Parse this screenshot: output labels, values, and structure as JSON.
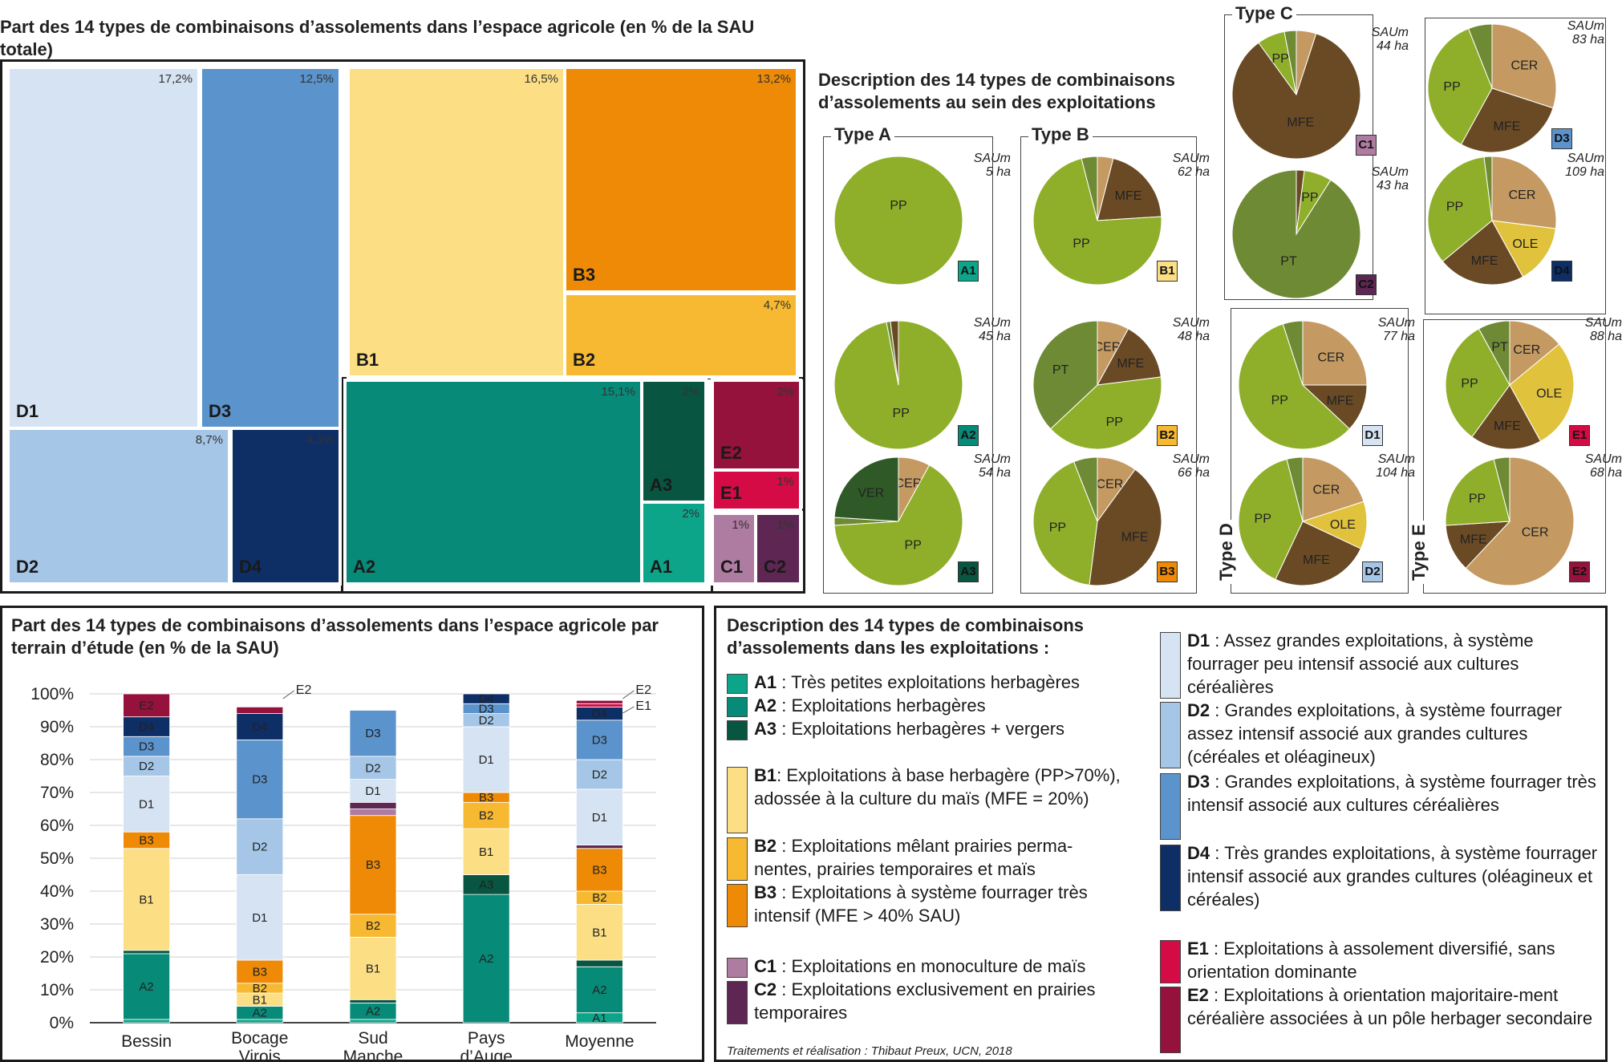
{
  "treemap": {
    "title": "Part des 14 types de combinaisons d’assolements dans l’espace agricole (en % de la SAU totale)",
    "cells": [
      {
        "code": "D1",
        "pct": "17,2%",
        "color": "#d6e3f3"
      },
      {
        "code": "D3",
        "pct": "12,5%",
        "color": "#5b93cc"
      },
      {
        "code": "D2",
        "pct": "8,7%",
        "color": "#a5c6e6"
      },
      {
        "code": "D4",
        "pct": "4,3%",
        "color": "#0e2e66"
      },
      {
        "code": "B1",
        "pct": "16,5%",
        "color": "#fcdf85"
      },
      {
        "code": "B3",
        "pct": "13,2%",
        "color": "#ee8a06"
      },
      {
        "code": "B2",
        "pct": "4,7%",
        "color": "#f6b931"
      },
      {
        "code": "A2",
        "pct": "15,1%",
        "color": "#078a78"
      },
      {
        "code": "A3",
        "pct": "2%",
        "color": "#085542"
      },
      {
        "code": "A1",
        "pct": "2%",
        "color": "#0ca58a"
      },
      {
        "code": "E2",
        "pct": "2%",
        "color": "#95123c"
      },
      {
        "code": "E1",
        "pct": "1%",
        "color": "#d50b45"
      },
      {
        "code": "C1",
        "pct": "1%",
        "color": "#ae7ba1"
      },
      {
        "code": "C2",
        "pct": "1%",
        "color": "#5d2653"
      }
    ]
  },
  "pies_panel": {
    "title": "Description des 14 types de combinaisons d’assolements au sein des exploitations",
    "groups": [
      {
        "label": "Type A"
      },
      {
        "label": "Type B"
      },
      {
        "label": "Type C"
      },
      {
        "label": "Type D"
      },
      {
        "label": "Type E"
      }
    ],
    "slice_colors": {
      "PP": "#8faf2a",
      "PT": "#6f8a35",
      "MFE": "#6a4a25",
      "CER": "#c49a62",
      "OLE": "#e1c23d",
      "VER": "#2f5a27"
    },
    "pies": [
      {
        "code": "A1",
        "saum": [
          "SAUm",
          "5 ha"
        ],
        "slices": [
          {
            "l": "PP",
            "v": 100
          }
        ]
      },
      {
        "code": "A2",
        "saum": [
          "SAUm",
          "45 ha"
        ],
        "slices": [
          {
            "l": "PP",
            "v": 97,
            "show": true
          },
          {
            "l": "PT",
            "v": 1
          },
          {
            "l": "MFE",
            "v": 2
          }
        ]
      },
      {
        "code": "A3",
        "saum": [
          "SAUm",
          "54 ha"
        ],
        "slices": [
          {
            "l": "CER",
            "v": 8
          },
          {
            "l": "PP",
            "v": 66
          },
          {
            "l": "PT",
            "v": 2
          },
          {
            "l": "VER",
            "v": 24
          }
        ]
      },
      {
        "code": "B1",
        "saum": [
          "SAUm",
          "62 ha"
        ],
        "slices": [
          {
            "l": "CER",
            "v": 4
          },
          {
            "l": "MFE",
            "v": 20
          },
          {
            "l": "PP",
            "v": 72
          },
          {
            "l": "PT",
            "v": 4
          }
        ]
      },
      {
        "code": "B2",
        "saum": [
          "SAUm",
          "48 ha"
        ],
        "slices": [
          {
            "l": "CER",
            "v": 8
          },
          {
            "l": "MFE",
            "v": 15
          },
          {
            "l": "PP",
            "v": 40
          },
          {
            "l": "PT",
            "v": 37
          }
        ]
      },
      {
        "code": "B3",
        "saum": [
          "SAUm",
          "66 ha"
        ],
        "slices": [
          {
            "l": "CER",
            "v": 10
          },
          {
            "l": "MFE",
            "v": 42
          },
          {
            "l": "PP",
            "v": 42
          },
          {
            "l": "PT",
            "v": 6
          }
        ]
      },
      {
        "code": "C1",
        "saum": [
          "SAUm",
          "44 ha"
        ],
        "slices": [
          {
            "l": "CER",
            "v": 5
          },
          {
            "l": "MFE",
            "v": 85
          },
          {
            "l": "PP",
            "v": 7
          },
          {
            "l": "PT",
            "v": 3
          }
        ]
      },
      {
        "code": "C2",
        "saum": [
          "SAUm",
          "43 ha"
        ],
        "slices": [
          {
            "l": "MFE",
            "v": 2
          },
          {
            "l": "PP",
            "v": 7
          },
          {
            "l": "PT",
            "v": 91
          }
        ]
      },
      {
        "code": "D3",
        "saum": [
          "SAUm",
          "83 ha"
        ],
        "slices": [
          {
            "l": "CER",
            "v": 30
          },
          {
            "l": "MFE",
            "v": 28
          },
          {
            "l": "PP",
            "v": 36
          },
          {
            "l": "PT",
            "v": 6
          }
        ]
      },
      {
        "code": "D4",
        "saum": [
          "SAUm",
          "109 ha"
        ],
        "slices": [
          {
            "l": "CER",
            "v": 27
          },
          {
            "l": "OLE",
            "v": 15
          },
          {
            "l": "MFE",
            "v": 22
          },
          {
            "l": "PP",
            "v": 34
          },
          {
            "l": "PT",
            "v": 2
          }
        ]
      },
      {
        "code": "D1",
        "saum": [
          "SAUm",
          "77 ha"
        ],
        "slices": [
          {
            "l": "CER",
            "v": 25
          },
          {
            "l": "MFE",
            "v": 12
          },
          {
            "l": "PP",
            "v": 58
          },
          {
            "l": "PT",
            "v": 5
          }
        ]
      },
      {
        "code": "D2",
        "saum": [
          "SAUm",
          "104 ha"
        ],
        "slices": [
          {
            "l": "CER",
            "v": 20
          },
          {
            "l": "OLE",
            "v": 12
          },
          {
            "l": "MFE",
            "v": 25
          },
          {
            "l": "PP",
            "v": 39
          },
          {
            "l": "PT",
            "v": 4
          }
        ]
      },
      {
        "code": "E1",
        "saum": [
          "SAUm",
          "88 ha"
        ],
        "slices": [
          {
            "l": "CER",
            "v": 14
          },
          {
            "l": "OLE",
            "v": 28
          },
          {
            "l": "MFE",
            "v": 18
          },
          {
            "l": "PP",
            "v": 32
          },
          {
            "l": "PT",
            "v": 8
          }
        ]
      },
      {
        "code": "E2",
        "saum": [
          "SAUm",
          "68 ha"
        ],
        "slices": [
          {
            "l": "CER",
            "v": 62
          },
          {
            "l": "MFE",
            "v": 12
          },
          {
            "l": "PP",
            "v": 22
          },
          {
            "l": "PT",
            "v": 4
          }
        ]
      }
    ]
  },
  "chart_data": {
    "type": "bar",
    "stacked": true,
    "title": "Part des 14 types de combinaisons d’assolements dans l’espace agricole par terrain d’étude (en % de la SAU)",
    "categories": [
      "Bessin",
      "Bocage Virois",
      "Sud Manche",
      "Pays d’Auge",
      "Moyenne"
    ],
    "category_lines": [
      [
        "Bessin"
      ],
      [
        "Bocage",
        "Virois"
      ],
      [
        "Sud",
        "Manche"
      ],
      [
        "Pays",
        "d’Auge"
      ],
      [
        "Moyenne"
      ]
    ],
    "ylim": [
      0,
      100
    ],
    "yticks": [
      "0%",
      "10%",
      "20%",
      "30%",
      "40%",
      "50%",
      "60%",
      "70%",
      "80%",
      "90%",
      "100%"
    ],
    "grid": true,
    "outside_labels": [
      {
        "category": "Bocage Virois",
        "text": "E2"
      },
      {
        "category": "Moyenne",
        "text": "E2"
      },
      {
        "category": "Moyenne",
        "text": "E1"
      }
    ],
    "series": [
      {
        "name": "A1",
        "color": "#0ca58a",
        "values": [
          1,
          1,
          1,
          0,
          3
        ]
      },
      {
        "name": "A2",
        "color": "#078a78",
        "values": [
          20,
          4,
          5,
          39,
          14
        ]
      },
      {
        "name": "A3",
        "color": "#085542",
        "values": [
          1,
          0,
          1,
          6,
          2
        ]
      },
      {
        "name": "B1",
        "color": "#fcdf85",
        "values": [
          31,
          4,
          19,
          14,
          17
        ]
      },
      {
        "name": "B2",
        "color": "#f6b931",
        "values": [
          0,
          3,
          7,
          8,
          4
        ]
      },
      {
        "name": "B3",
        "color": "#ee8a06",
        "values": [
          5,
          7,
          30,
          3,
          13
        ]
      },
      {
        "name": "C1",
        "color": "#ae7ba1",
        "values": [
          0,
          0,
          2,
          0,
          0
        ]
      },
      {
        "name": "C2",
        "color": "#5d2653",
        "values": [
          0,
          0,
          2,
          0,
          1
        ]
      },
      {
        "name": "D1",
        "color": "#d6e3f3",
        "values": [
          17,
          26,
          7,
          20,
          17
        ]
      },
      {
        "name": "D2",
        "color": "#a5c6e6",
        "values": [
          6,
          17,
          7,
          4,
          9
        ]
      },
      {
        "name": "D3",
        "color": "#5b93cc",
        "values": [
          6,
          24,
          14,
          3,
          12
        ]
      },
      {
        "name": "D4",
        "color": "#0e2e66",
        "values": [
          6,
          8,
          0,
          3,
          4
        ]
      },
      {
        "name": "E1",
        "color": "#d50b45",
        "values": [
          0,
          0,
          0,
          0,
          1
        ]
      },
      {
        "name": "E2",
        "color": "#95123c",
        "values": [
          7,
          2,
          0,
          0,
          1
        ]
      }
    ]
  },
  "legend": {
    "title": "Description des 14 types de combinaisons d’assolements dans les exploitations :",
    "items": [
      {
        "code": "A1",
        "text": " : Très petites exploitations herbagères"
      },
      {
        "code": "A2",
        "text": " : Exploitations herbagères"
      },
      {
        "code": "A3",
        "text": " : Exploitations herbagères + vergers"
      },
      {
        "code": "B1",
        "text": ": Exploitations à base herbagère (PP>70%), adossée à la culture du maïs (MFE = 20%)"
      },
      {
        "code": "B2",
        "text": " : Exploitations mêlant prairies perma-nentes, prairies temporaires et maïs"
      },
      {
        "code": "B3",
        "text": " : Exploitations à système fourrager très intensif (MFE > 40% SAU)"
      },
      {
        "code": "C1",
        "text": " : Exploitations en monoculture de maïs"
      },
      {
        "code": "C2",
        "text": " : Exploitations exclusivement en prairies temporaires"
      },
      {
        "code": "D1",
        "text": " : Assez grandes exploitations, à système fourrager peu intensif associé aux cultures céréalières"
      },
      {
        "code": "D2",
        "text": " : Grandes exploitations, à système fourrager assez intensif associé aux grandes cultures (céréales et oléagineux)"
      },
      {
        "code": "D3",
        "text": " : Grandes exploitations, à système fourrager très intensif associé aux cultures céréalières"
      },
      {
        "code": "D4",
        "text": " : Très grandes exploitations, à système fourrager intensif associé aux grandes cultures (oléagineux et céréales)"
      },
      {
        "code": "E1",
        "text": " : Exploitations à assolement diversifié, sans orientation dominante"
      },
      {
        "code": "E2",
        "text": " : Exploitations à orientation majoritaire-ment céréalière associées à un pôle herbager secondaire"
      }
    ],
    "credit": "Traitements et réalisation : Thibaut Preux, UCN, 2018"
  }
}
